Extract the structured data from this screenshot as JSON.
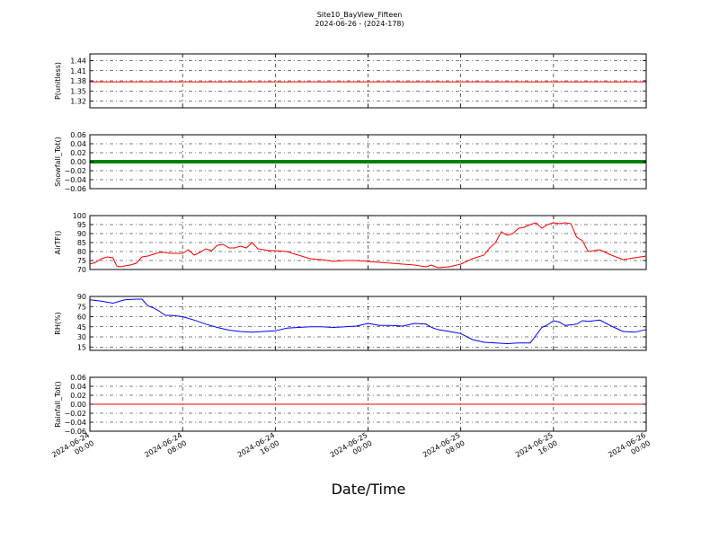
{
  "figure": {
    "title_line1": "Site10_BayView_Fifteen",
    "title_line2": "2024-06-26 - (2024-178)",
    "xlabel": "Date/Time",
    "x_ticks": [
      [
        "2024-06-24",
        "00:00"
      ],
      [
        "2024-06-24",
        "08:00"
      ],
      [
        "2024-06-24",
        "16:00"
      ],
      [
        "2024-06-25",
        "00:00"
      ],
      [
        "2024-06-25",
        "08:00"
      ],
      [
        "2024-06-25",
        "16:00"
      ],
      [
        "2024-06-26",
        "00:00"
      ]
    ]
  },
  "chart_data": [
    {
      "type": "line",
      "ylabel": "P(unitless)",
      "color": "#ff0000",
      "ylim": [
        1.3,
        1.46
      ],
      "yticks": [
        1.32,
        1.35,
        1.38,
        1.41,
        1.44
      ],
      "ytick_labels": [
        "1.32",
        "1.35",
        "1.38",
        "1.41",
        "1.44"
      ],
      "grid": true,
      "x_hours": [
        0,
        48
      ],
      "values": [
        1.377,
        1.377
      ]
    },
    {
      "type": "line",
      "ylabel": "Snowfall_Tot()",
      "color": "#008000",
      "line_width": 4,
      "ylim": [
        -0.06,
        0.06
      ],
      "yticks": [
        -0.06,
        -0.04,
        -0.02,
        0.0,
        0.02,
        0.04,
        0.06
      ],
      "ytick_labels": [
        "−0.06",
        "−0.04",
        "−0.02",
        "0.00",
        "0.02",
        "0.04",
        "0.06"
      ],
      "grid": true,
      "x_hours": [
        0,
        48
      ],
      "values": [
        0,
        0
      ]
    },
    {
      "type": "line",
      "ylabel": "AirTF()",
      "color": "#ff0000",
      "ylim": [
        70,
        100
      ],
      "yticks": [
        70,
        75,
        80,
        85,
        90,
        95,
        100
      ],
      "ytick_labels": [
        "70",
        "75",
        "80",
        "85",
        "90",
        "95",
        "100"
      ],
      "grid": true,
      "x_hours": [
        0,
        0.5,
        1,
        1.5,
        2,
        2.3,
        2.6,
        3,
        3.5,
        4,
        4.5,
        5,
        5.5,
        6,
        6.5,
        7,
        7.5,
        8,
        8.5,
        9,
        9.5,
        10,
        10.5,
        11,
        11.5,
        12,
        12.5,
        13,
        13.5,
        14,
        14.5,
        15,
        15.5,
        16,
        17,
        18,
        19,
        20,
        21,
        22,
        23,
        24,
        25,
        26,
        27,
        28,
        29,
        29.5,
        30,
        31,
        32,
        33,
        34,
        34.5,
        35,
        35.5,
        36,
        36.5,
        37,
        37.5,
        38,
        38.5,
        39,
        39.5,
        40,
        40.5,
        41,
        41.5,
        42,
        42.5,
        43,
        44,
        45,
        46,
        47,
        48
      ],
      "values": [
        73,
        74,
        76,
        77,
        76.5,
        72,
        71.5,
        72,
        72.5,
        73.5,
        77,
        77.5,
        78.5,
        79.5,
        79.5,
        79,
        79,
        79,
        81,
        78,
        79.5,
        81.5,
        80.5,
        83.5,
        84,
        82,
        82,
        83,
        82,
        85,
        81.5,
        81,
        80.5,
        80.5,
        80,
        78,
        76,
        75.5,
        74.5,
        75,
        75,
        74.5,
        74,
        73.5,
        73,
        72.5,
        71.5,
        72.5,
        71,
        71.5,
        73,
        76,
        78,
        82,
        85,
        91,
        89,
        90,
        93,
        93.5,
        95,
        96,
        93,
        95,
        96,
        95.5,
        96,
        95.5,
        88,
        86,
        80,
        81,
        78,
        75.5,
        76.5,
        77.5
      ]
    },
    {
      "type": "line",
      "ylabel": "RH(%)",
      "color": "#0000ff",
      "ylim": [
        10,
        90
      ],
      "yticks": [
        15,
        30,
        45,
        60,
        75,
        90
      ],
      "ytick_labels": [
        "15",
        "30",
        "45",
        "60",
        "75",
        "90"
      ],
      "grid": true,
      "x_hours": [
        0,
        1,
        2,
        3,
        4,
        4.5,
        5,
        5.5,
        6,
        6.5,
        7,
        8,
        9,
        10,
        11,
        12,
        13,
        14,
        15,
        16,
        17,
        18,
        19,
        20,
        21,
        22,
        23,
        24,
        25,
        26,
        27,
        28,
        29,
        29.5,
        30,
        31,
        32,
        33,
        34,
        35,
        36,
        37,
        38,
        39,
        39.5,
        40,
        40.5,
        41,
        42,
        42.5,
        43,
        44,
        45,
        46,
        47,
        48
      ],
      "values": [
        85,
        83,
        80,
        85,
        86,
        86,
        76,
        73,
        68,
        62,
        62,
        60,
        55,
        49,
        44,
        40,
        38,
        37,
        38,
        39,
        43,
        44,
        45,
        45,
        44,
        45,
        46,
        50,
        47,
        47,
        46,
        50,
        49,
        44,
        41,
        38,
        35,
        26,
        22,
        21,
        20,
        21,
        21,
        44,
        48,
        54,
        52,
        47,
        49,
        54,
        53,
        55,
        46,
        38,
        37,
        41
      ]
    },
    {
      "type": "line",
      "ylabel": "Rainfall_Tot()",
      "color": "#ff0000",
      "ylim": [
        -0.06,
        0.06
      ],
      "yticks": [
        -0.06,
        -0.04,
        -0.02,
        0.0,
        0.02,
        0.04,
        0.06
      ],
      "ytick_labels": [
        "−0.06",
        "−0.04",
        "−0.02",
        "0.00",
        "0.02",
        "0.04",
        "0.06"
      ],
      "grid": true,
      "x_hours": [
        0,
        48
      ],
      "values": [
        0,
        0
      ]
    }
  ]
}
